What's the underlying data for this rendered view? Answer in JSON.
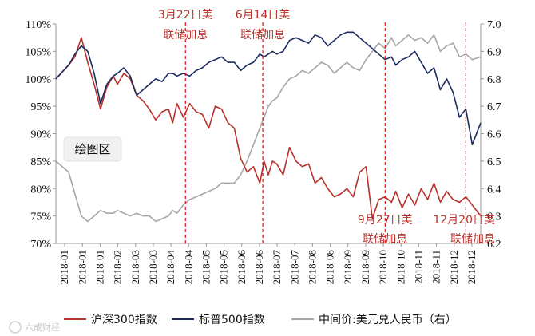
{
  "chart_data": {
    "type": "line",
    "y_left": {
      "ticks": [
        "70%",
        "75%",
        "80%",
        "85%",
        "90%",
        "95%",
        "100%",
        "105%",
        "110%"
      ],
      "range": [
        70,
        110
      ]
    },
    "y_right": {
      "ticks": [
        "6.2",
        "6.3",
        "6.4",
        "6.5",
        "6.6",
        "6.7",
        "6.8",
        "6.9",
        "7.0"
      ],
      "range": [
        6.2,
        7.0
      ]
    },
    "x_labels": [
      "2018-01",
      "2018-01",
      "2018-01",
      "2018-02",
      "2018-03",
      "2018-03",
      "2018-04",
      "2018-04",
      "2018-05",
      "2018-05",
      "2018-06",
      "2018-06",
      "2018-07",
      "2018-07",
      "2018-08",
      "2018-08",
      "2018-09",
      "2018-09",
      "2018-10",
      "2018-10",
      "2018-11",
      "2018-11",
      "2018-12",
      "2018-12"
    ],
    "x_range": [
      0,
      1
    ],
    "plot_area_label": "绘图区",
    "series": [
      {
        "name": "沪深300指数",
        "axis": "left",
        "color": "#b7312c",
        "x": [
          0.0,
          0.03,
          0.045,
          0.06,
          0.075,
          0.09,
          0.105,
          0.12,
          0.135,
          0.145,
          0.16,
          0.175,
          0.19,
          0.205,
          0.22,
          0.235,
          0.25,
          0.265,
          0.275,
          0.285,
          0.3,
          0.315,
          0.33,
          0.345,
          0.36,
          0.375,
          0.39,
          0.405,
          0.42,
          0.435,
          0.45,
          0.465,
          0.48,
          0.49,
          0.5,
          0.51,
          0.52,
          0.535,
          0.55,
          0.565,
          0.58,
          0.595,
          0.61,
          0.625,
          0.64,
          0.655,
          0.67,
          0.685,
          0.7,
          0.715,
          0.73,
          0.745,
          0.76,
          0.775,
          0.79,
          0.8,
          0.815,
          0.83,
          0.845,
          0.86,
          0.875,
          0.89,
          0.905,
          0.92,
          0.935,
          0.95,
          0.965,
          0.98,
          1.0
        ],
        "y": [
          100.0,
          102.5,
          104.0,
          107.5,
          103.0,
          99.0,
          94.5,
          98.5,
          100.5,
          99.0,
          101.0,
          100.0,
          97.0,
          96.0,
          94.5,
          92.5,
          94.0,
          94.5,
          92.0,
          95.5,
          93.0,
          95.5,
          94.0,
          93.5,
          91.0,
          95.0,
          94.5,
          92.0,
          91.0,
          85.5,
          83.0,
          84.0,
          81.0,
          85.0,
          82.5,
          85.0,
          84.5,
          82.5,
          87.5,
          85.0,
          84.0,
          84.5,
          81.0,
          82.0,
          80.0,
          78.5,
          79.0,
          80.0,
          78.5,
          83.0,
          84.0,
          74.5,
          78.0,
          78.5,
          77.5,
          79.5,
          76.5,
          79.0,
          77.0,
          80.0,
          78.0,
          81.0,
          77.5,
          79.5,
          78.0,
          77.5,
          78.5,
          77.0,
          75.0
        ]
      },
      {
        "name": "标普500指数",
        "axis": "left",
        "color": "#1c2b5e",
        "x": [
          0.0,
          0.03,
          0.045,
          0.06,
          0.075,
          0.09,
          0.105,
          0.12,
          0.135,
          0.145,
          0.16,
          0.175,
          0.19,
          0.205,
          0.22,
          0.235,
          0.25,
          0.265,
          0.275,
          0.285,
          0.3,
          0.315,
          0.33,
          0.345,
          0.36,
          0.375,
          0.39,
          0.405,
          0.42,
          0.435,
          0.45,
          0.465,
          0.48,
          0.49,
          0.5,
          0.51,
          0.52,
          0.535,
          0.55,
          0.565,
          0.58,
          0.595,
          0.61,
          0.625,
          0.64,
          0.655,
          0.67,
          0.685,
          0.7,
          0.715,
          0.73,
          0.745,
          0.76,
          0.775,
          0.79,
          0.8,
          0.815,
          0.83,
          0.845,
          0.86,
          0.875,
          0.89,
          0.905,
          0.92,
          0.935,
          0.95,
          0.965,
          0.98,
          1.0
        ],
        "y": [
          100.0,
          102.5,
          104.5,
          106.0,
          105.0,
          101.0,
          95.5,
          99.0,
          100.5,
          101.0,
          102.0,
          100.5,
          97.0,
          98.0,
          99.0,
          100.0,
          99.5,
          101.0,
          101.0,
          100.5,
          101.0,
          100.5,
          101.5,
          102.0,
          103.0,
          103.5,
          104.0,
          103.0,
          103.0,
          101.5,
          102.5,
          103.0,
          104.5,
          104.0,
          104.5,
          105.0,
          104.5,
          105.0,
          107.0,
          107.5,
          107.0,
          106.5,
          108.0,
          107.5,
          106.0,
          107.0,
          108.0,
          108.5,
          108.5,
          107.5,
          106.5,
          105.5,
          104.5,
          103.5,
          104.0,
          102.5,
          103.5,
          104.0,
          105.0,
          103.0,
          101.0,
          102.0,
          98.0,
          100.0,
          97.5,
          93.0,
          94.5,
          88.0,
          92.0
        ]
      },
      {
        "name": "中间价:美元兑人民币（右）",
        "axis": "right",
        "color": "#a6a6a6",
        "x": [
          0.0,
          0.03,
          0.045,
          0.06,
          0.075,
          0.09,
          0.105,
          0.12,
          0.135,
          0.145,
          0.16,
          0.175,
          0.19,
          0.205,
          0.22,
          0.235,
          0.25,
          0.265,
          0.275,
          0.285,
          0.3,
          0.315,
          0.33,
          0.345,
          0.36,
          0.375,
          0.39,
          0.405,
          0.42,
          0.435,
          0.45,
          0.465,
          0.48,
          0.49,
          0.5,
          0.51,
          0.52,
          0.535,
          0.55,
          0.565,
          0.58,
          0.595,
          0.61,
          0.625,
          0.64,
          0.655,
          0.67,
          0.685,
          0.7,
          0.715,
          0.73,
          0.745,
          0.76,
          0.775,
          0.79,
          0.8,
          0.815,
          0.83,
          0.845,
          0.86,
          0.875,
          0.89,
          0.905,
          0.92,
          0.935,
          0.95,
          0.965,
          0.98,
          1.0
        ],
        "y": [
          6.5,
          6.46,
          6.38,
          6.3,
          6.28,
          6.3,
          6.32,
          6.31,
          6.31,
          6.32,
          6.31,
          6.3,
          6.31,
          6.3,
          6.3,
          6.28,
          6.29,
          6.3,
          6.32,
          6.31,
          6.34,
          6.36,
          6.37,
          6.38,
          6.39,
          6.4,
          6.42,
          6.42,
          6.42,
          6.45,
          6.5,
          6.56,
          6.62,
          6.66,
          6.7,
          6.72,
          6.73,
          6.77,
          6.8,
          6.81,
          6.83,
          6.82,
          6.84,
          6.86,
          6.85,
          6.82,
          6.84,
          6.86,
          6.84,
          6.83,
          6.87,
          6.9,
          6.93,
          6.91,
          6.95,
          6.92,
          6.94,
          6.96,
          6.94,
          6.95,
          6.93,
          6.96,
          6.9,
          6.92,
          6.93,
          6.88,
          6.89,
          6.87,
          6.88
        ]
      }
    ],
    "event_lines": [
      {
        "x": 0.305,
        "label1": "3月22日美",
        "label2": "联储加息",
        "label_pos": "top"
      },
      {
        "x": 0.487,
        "label1": "6月14日美",
        "label2": "联储加息",
        "label_pos": "top"
      },
      {
        "x": 0.775,
        "label1": "9月27日美",
        "label2": "联储加息",
        "label_pos": "bottom"
      },
      {
        "x": 0.965,
        "label1": "12月20日美",
        "label2": "联储加息",
        "label_pos": "bottom"
      }
    ],
    "legend_position": "bottom",
    "grid": false
  },
  "watermark": "六成财经"
}
